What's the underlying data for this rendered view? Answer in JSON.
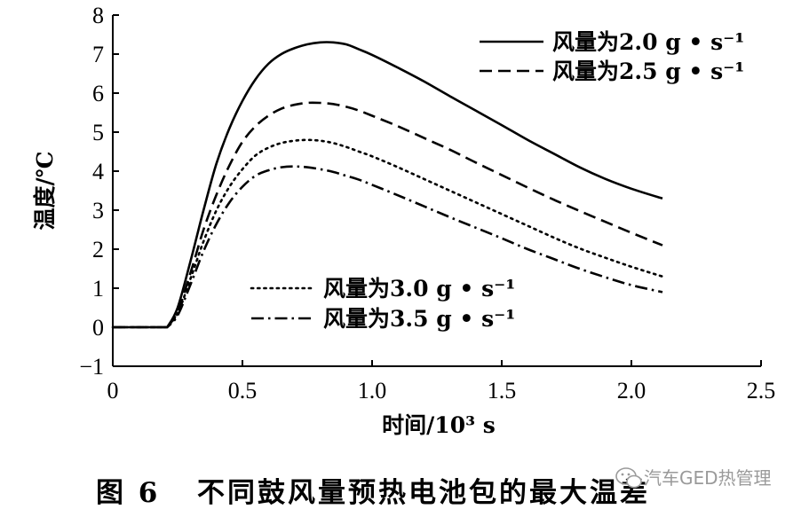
{
  "chart_data": {
    "type": "line",
    "xlabel": "时间/10³ s",
    "ylabel": "温度/℃",
    "xlim": [
      0,
      2.5
    ],
    "ylim": [
      -1,
      8
    ],
    "xticks": [
      0,
      0.5,
      1.0,
      1.5,
      2.0,
      2.5
    ],
    "xtick_labels": [
      "0",
      "0.5",
      "1.0",
      "1.5",
      "2.0",
      "2.5"
    ],
    "yticks": [
      -1,
      0,
      1,
      2,
      3,
      4,
      5,
      6,
      7,
      8
    ],
    "ytick_labels": [
      "−1",
      "0",
      "1",
      "2",
      "3",
      "4",
      "5",
      "6",
      "7",
      "8"
    ],
    "grid": false,
    "series": [
      {
        "name": "风量为2.0 g • s⁻¹",
        "style": "solid",
        "x": [
          0,
          0.21,
          0.25,
          0.3,
          0.35,
          0.4,
          0.45,
          0.5,
          0.55,
          0.6,
          0.65,
          0.7,
          0.75,
          0.8,
          0.85,
          0.9,
          0.95,
          1.0,
          1.1,
          1.2,
          1.3,
          1.4,
          1.5,
          1.6,
          1.7,
          1.8,
          1.9,
          2.0,
          2.12
        ],
        "y": [
          0,
          0,
          0.5,
          1.7,
          3.0,
          4.2,
          5.1,
          5.8,
          6.35,
          6.75,
          7.0,
          7.15,
          7.25,
          7.3,
          7.3,
          7.25,
          7.12,
          6.98,
          6.65,
          6.3,
          5.92,
          5.55,
          5.18,
          4.8,
          4.45,
          4.1,
          3.8,
          3.55,
          3.3
        ]
      },
      {
        "name": "风量为2.5 g • s⁻¹",
        "style": "dashed",
        "x": [
          0,
          0.21,
          0.25,
          0.3,
          0.35,
          0.4,
          0.45,
          0.5,
          0.55,
          0.6,
          0.65,
          0.7,
          0.75,
          0.8,
          0.85,
          0.9,
          0.95,
          1.0,
          1.1,
          1.2,
          1.3,
          1.4,
          1.5,
          1.6,
          1.7,
          1.8,
          1.9,
          2.0,
          2.12
        ],
        "y": [
          0,
          0,
          0.4,
          1.4,
          2.5,
          3.4,
          4.15,
          4.75,
          5.15,
          5.42,
          5.6,
          5.7,
          5.75,
          5.75,
          5.72,
          5.65,
          5.55,
          5.42,
          5.15,
          4.85,
          4.55,
          4.22,
          3.9,
          3.58,
          3.27,
          2.98,
          2.7,
          2.42,
          2.1
        ]
      },
      {
        "name": "风量为3.0 g • s⁻¹",
        "style": "dotted",
        "x": [
          0,
          0.21,
          0.25,
          0.3,
          0.35,
          0.4,
          0.45,
          0.5,
          0.55,
          0.6,
          0.65,
          0.7,
          0.75,
          0.8,
          0.85,
          0.9,
          0.95,
          1.0,
          1.1,
          1.2,
          1.3,
          1.4,
          1.5,
          1.6,
          1.7,
          1.8,
          1.9,
          2.0,
          2.12
        ],
        "y": [
          0,
          0,
          0.35,
          1.25,
          2.2,
          3.0,
          3.6,
          4.05,
          4.4,
          4.6,
          4.72,
          4.78,
          4.8,
          4.78,
          4.72,
          4.62,
          4.5,
          4.38,
          4.1,
          3.8,
          3.5,
          3.2,
          2.9,
          2.6,
          2.3,
          2.02,
          1.78,
          1.55,
          1.3
        ]
      },
      {
        "name": "风量为3.5 g • s⁻¹",
        "style": "dashdot",
        "x": [
          0,
          0.21,
          0.25,
          0.3,
          0.35,
          0.4,
          0.45,
          0.5,
          0.55,
          0.6,
          0.65,
          0.7,
          0.75,
          0.8,
          0.85,
          0.9,
          0.95,
          1.0,
          1.1,
          1.2,
          1.3,
          1.4,
          1.5,
          1.6,
          1.7,
          1.8,
          1.9,
          2.0,
          2.12
        ],
        "y": [
          0,
          0,
          0.3,
          1.1,
          1.95,
          2.65,
          3.2,
          3.6,
          3.88,
          4.02,
          4.1,
          4.12,
          4.1,
          4.05,
          3.98,
          3.88,
          3.78,
          3.65,
          3.38,
          3.1,
          2.82,
          2.55,
          2.28,
          2.0,
          1.75,
          1.5,
          1.28,
          1.08,
          0.9
        ]
      }
    ],
    "legend_groups": [
      {
        "placement": "top-right",
        "series": [
          0,
          1
        ]
      },
      {
        "placement": "bottom-center",
        "series": [
          2,
          3
        ]
      }
    ]
  },
  "caption": {
    "label": "图 6",
    "title": "不同鼓风量预热电池包的最大温差"
  },
  "watermark": "汽车GED热管理"
}
